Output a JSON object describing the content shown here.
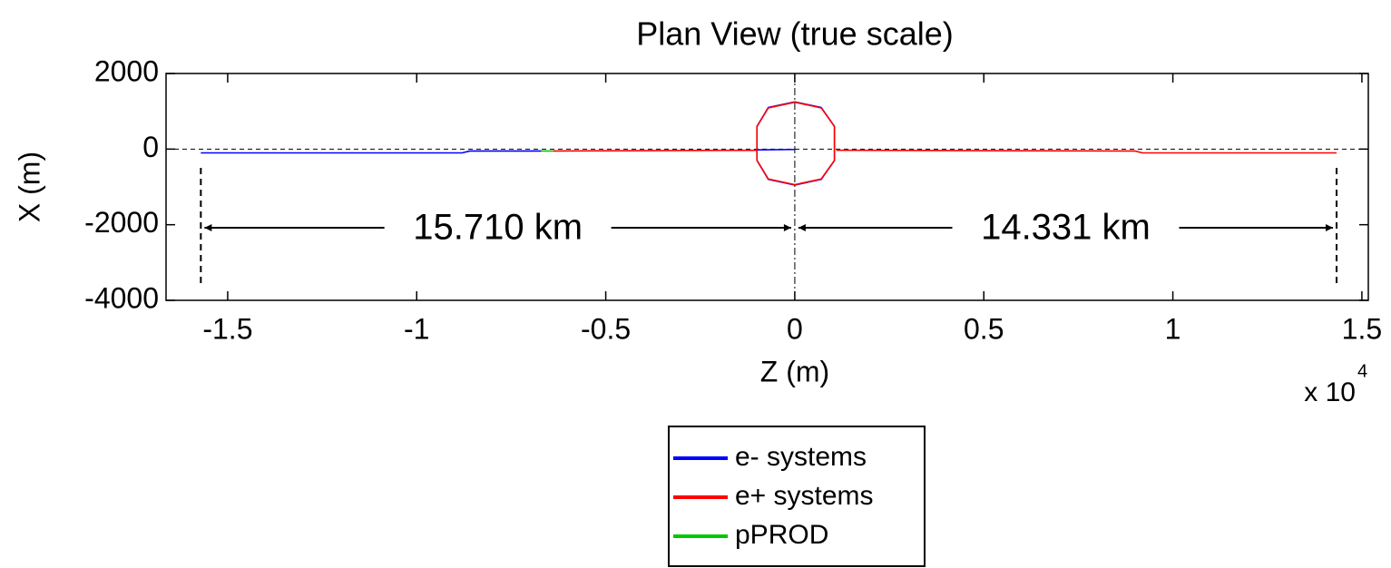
{
  "chart_data": {
    "type": "line",
    "title": "Plan View (true scale)",
    "xlabel": "Z (m)",
    "ylabel": "X (m)",
    "x_multiplier": "x 10",
    "x_exponent": "4",
    "xlim": [
      -16630,
      15170
    ],
    "ylim": [
      -4000,
      2000
    ],
    "xticks": [
      {
        "value": -15000,
        "label": "-1.5"
      },
      {
        "value": -10000,
        "label": "-1"
      },
      {
        "value": -5000,
        "label": "-0.5"
      },
      0,
      {
        "value": 5000,
        "label": "0.5"
      },
      {
        "value": 10000,
        "label": "1"
      },
      {
        "value": 15000,
        "label": "1.5"
      }
    ],
    "yticks": [
      -4000,
      -2000,
      0,
      2000
    ],
    "series": [
      {
        "name": "e- systems",
        "color": "#0000ff",
        "x": [
          -15710,
          -8800,
          -8600,
          -6700,
          null,
          -1000,
          0,
          null,
          0,
          700,
          1050,
          1050,
          700,
          0,
          -700,
          -1000,
          -1000,
          -700,
          0
        ],
        "values": [
          -100,
          -100,
          -50,
          -50,
          null,
          -20,
          -10,
          null,
          1250,
          1100,
          600,
          -300,
          -800,
          -950,
          -800,
          -300,
          600,
          1100,
          1250
        ]
      },
      {
        "name": "e+ systems",
        "color": "#ff0000",
        "x": [
          -6400,
          -1000,
          null,
          0,
          700,
          1050,
          1050,
          700,
          0,
          -700,
          -1000,
          -1000,
          -700,
          0,
          null,
          1100,
          9000,
          9200,
          14331
        ],
        "values": [
          -50,
          -30,
          null,
          1240,
          1090,
          600,
          -300,
          -790,
          -940,
          -790,
          -300,
          600,
          1090,
          1240,
          null,
          -30,
          -50,
          -100,
          -100
        ]
      },
      {
        "name": "pPROD",
        "color": "#00c800",
        "x": [
          -6700,
          -6400
        ],
        "values": [
          -50,
          -50
        ]
      }
    ],
    "annotations": [
      {
        "from": -15710,
        "to": 0,
        "label": "15.710 km"
      },
      {
        "from": 0,
        "to": 14331,
        "label": "14.331 km"
      }
    ],
    "legend": "bottom"
  }
}
